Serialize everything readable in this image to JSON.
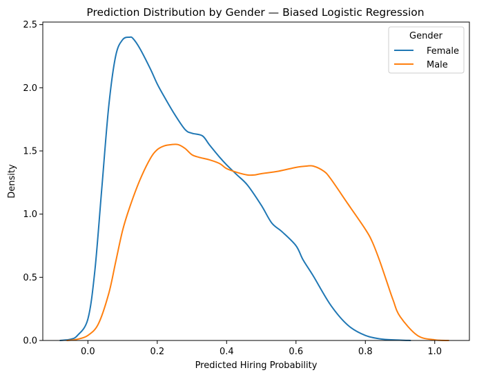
{
  "chart_data": {
    "type": "line",
    "title": "Prediction Distribution by Gender — Biased Logistic Regression",
    "xlabel": "Predicted Hiring Probability",
    "ylabel": "Density",
    "xlim": [
      -0.13,
      1.1
    ],
    "ylim": [
      0,
      2.52
    ],
    "xticks": [
      "0.0",
      "0.2",
      "0.4",
      "0.6",
      "0.8",
      "1.0"
    ],
    "yticks": [
      "0.0",
      "0.5",
      "1.0",
      "1.5",
      "2.0",
      "2.5"
    ],
    "legend": {
      "title": "Gender",
      "position": "top-right"
    },
    "grid": false,
    "series": [
      {
        "name": "Female",
        "color": "#1f77b4",
        "x": [
          -0.08,
          -0.05,
          -0.03,
          0.0,
          0.02,
          0.04,
          0.06,
          0.08,
          0.1,
          0.12,
          0.13,
          0.15,
          0.18,
          0.2,
          0.22,
          0.25,
          0.28,
          0.3,
          0.33,
          0.35,
          0.38,
          0.4,
          0.43,
          0.46,
          0.5,
          0.53,
          0.56,
          0.6,
          0.62,
          0.65,
          0.7,
          0.75,
          0.8,
          0.85,
          0.9,
          0.93
        ],
        "y": [
          0.0,
          0.01,
          0.04,
          0.17,
          0.55,
          1.2,
          1.85,
          2.25,
          2.38,
          2.4,
          2.39,
          2.31,
          2.15,
          2.03,
          1.93,
          1.79,
          1.67,
          1.64,
          1.62,
          1.55,
          1.45,
          1.39,
          1.31,
          1.23,
          1.07,
          0.93,
          0.86,
          0.75,
          0.64,
          0.51,
          0.28,
          0.12,
          0.04,
          0.01,
          0.003,
          0.0
        ]
      },
      {
        "name": "Male",
        "color": "#ff7f0e",
        "x": [
          -0.06,
          -0.03,
          0.0,
          0.03,
          0.06,
          0.08,
          0.1,
          0.12,
          0.15,
          0.18,
          0.2,
          0.22,
          0.24,
          0.26,
          0.28,
          0.3,
          0.32,
          0.35,
          0.38,
          0.4,
          0.43,
          0.46,
          0.48,
          0.5,
          0.55,
          0.6,
          0.63,
          0.65,
          0.68,
          0.7,
          0.75,
          0.8,
          0.82,
          0.84,
          0.86,
          0.88,
          0.9,
          0.95,
          1.0,
          1.04
        ],
        "y": [
          0.0,
          0.01,
          0.04,
          0.13,
          0.37,
          0.62,
          0.87,
          1.05,
          1.27,
          1.44,
          1.51,
          1.54,
          1.55,
          1.55,
          1.52,
          1.47,
          1.45,
          1.43,
          1.4,
          1.36,
          1.33,
          1.31,
          1.31,
          1.32,
          1.34,
          1.37,
          1.38,
          1.38,
          1.34,
          1.28,
          1.08,
          0.88,
          0.78,
          0.64,
          0.48,
          0.32,
          0.19,
          0.04,
          0.005,
          0.0
        ]
      }
    ]
  }
}
